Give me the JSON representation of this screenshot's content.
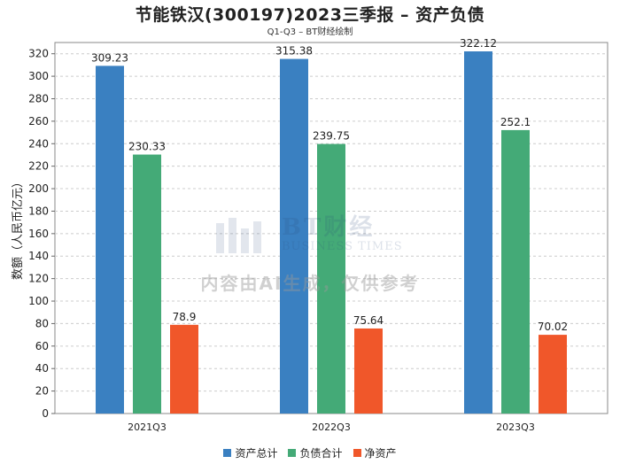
{
  "title": "节能铁汉(300197)2023三季报 – 资产负债",
  "subtitle": "Q1-Q3 – BT财经绘制",
  "watermark": {
    "brand_big": "BT财经",
    "brand_small": "BUSINESS TIMES",
    "ai_notice": "内容由AI生成，仅供参考"
  },
  "chart_data": {
    "type": "bar",
    "categories": [
      "2021Q3",
      "2022Q3",
      "2023Q3"
    ],
    "series": [
      {
        "name": "资产总计",
        "color": "#3a80c1",
        "values": [
          309.23,
          315.38,
          322.12
        ]
      },
      {
        "name": "负债合计",
        "color": "#44aa77",
        "values": [
          230.33,
          239.75,
          252.1
        ]
      },
      {
        "name": "净资产",
        "color": "#f0572a",
        "values": [
          78.9,
          75.64,
          70.02
        ]
      }
    ],
    "ylabel": "数额（人民币亿元）",
    "ylim": [
      0,
      330
    ],
    "yticks": [
      0,
      20,
      40,
      60,
      80,
      100,
      120,
      140,
      160,
      180,
      200,
      220,
      240,
      260,
      280,
      300,
      320
    ],
    "grid": true,
    "legend_position": "bottom"
  }
}
